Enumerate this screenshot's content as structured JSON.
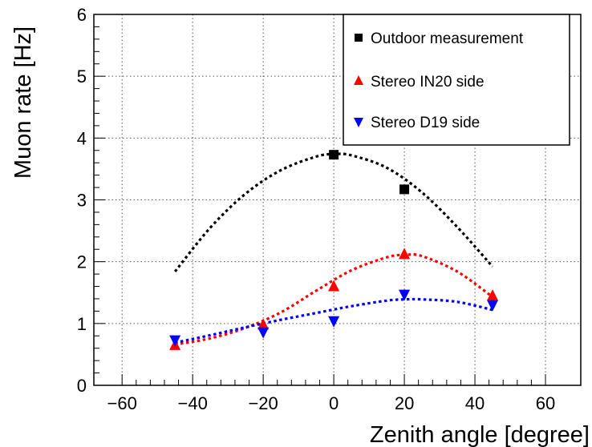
{
  "chart_data": {
    "type": "scatter",
    "title": "",
    "xlabel": "Zenith angle [degree]",
    "ylabel": "Muon rate [Hz]",
    "xlim": [
      -68,
      70
    ],
    "ylim": [
      0,
      6
    ],
    "x_ticks": [
      -60,
      -40,
      -20,
      0,
      20,
      40,
      60
    ],
    "y_ticks": [
      0,
      1,
      2,
      3,
      4,
      5,
      6
    ],
    "grid": true,
    "legend_position": "top-right",
    "series": [
      {
        "name": "Outdoor measurement",
        "marker": "square",
        "color": "#000000",
        "x": [
          0,
          20
        ],
        "y": [
          3.73,
          3.17
        ],
        "fit": [
          [
            -45,
            1.84
          ],
          [
            -35,
            2.55
          ],
          [
            -25,
            3.1
          ],
          [
            -15,
            3.48
          ],
          [
            -5,
            3.7
          ],
          [
            0,
            3.74
          ],
          [
            5,
            3.72
          ],
          [
            15,
            3.52
          ],
          [
            25,
            3.12
          ],
          [
            35,
            2.56
          ],
          [
            45,
            1.92
          ]
        ]
      },
      {
        "name": "Stereo IN20 side",
        "marker": "triangle-up",
        "color": "#ff0000",
        "x": [
          -45,
          -20,
          0,
          20,
          45
        ],
        "y": [
          0.65,
          0.98,
          1.6,
          2.12,
          1.45
        ],
        "fit": [
          [
            -45,
            0.66
          ],
          [
            -35,
            0.76
          ],
          [
            -25,
            0.93
          ],
          [
            -15,
            1.18
          ],
          [
            -5,
            1.53
          ],
          [
            5,
            1.86
          ],
          [
            15,
            2.07
          ],
          [
            20,
            2.11
          ],
          [
            25,
            2.09
          ],
          [
            35,
            1.84
          ],
          [
            45,
            1.43
          ]
        ]
      },
      {
        "name": "Stereo D19 side",
        "marker": "triangle-down",
        "color": "#0000ff",
        "x": [
          -45,
          -20,
          0,
          20,
          45
        ],
        "y": [
          0.73,
          0.86,
          1.04,
          1.47,
          1.3
        ],
        "fit": [
          [
            -45,
            0.69
          ],
          [
            -35,
            0.81
          ],
          [
            -25,
            0.94
          ],
          [
            -15,
            1.06
          ],
          [
            -5,
            1.17
          ],
          [
            5,
            1.28
          ],
          [
            15,
            1.37
          ],
          [
            20,
            1.39
          ],
          [
            25,
            1.39
          ],
          [
            35,
            1.35
          ],
          [
            45,
            1.22
          ]
        ]
      }
    ]
  },
  "colors": {
    "outdoor": "#000000",
    "in20": "#ff0000",
    "d19": "#0000ff"
  }
}
